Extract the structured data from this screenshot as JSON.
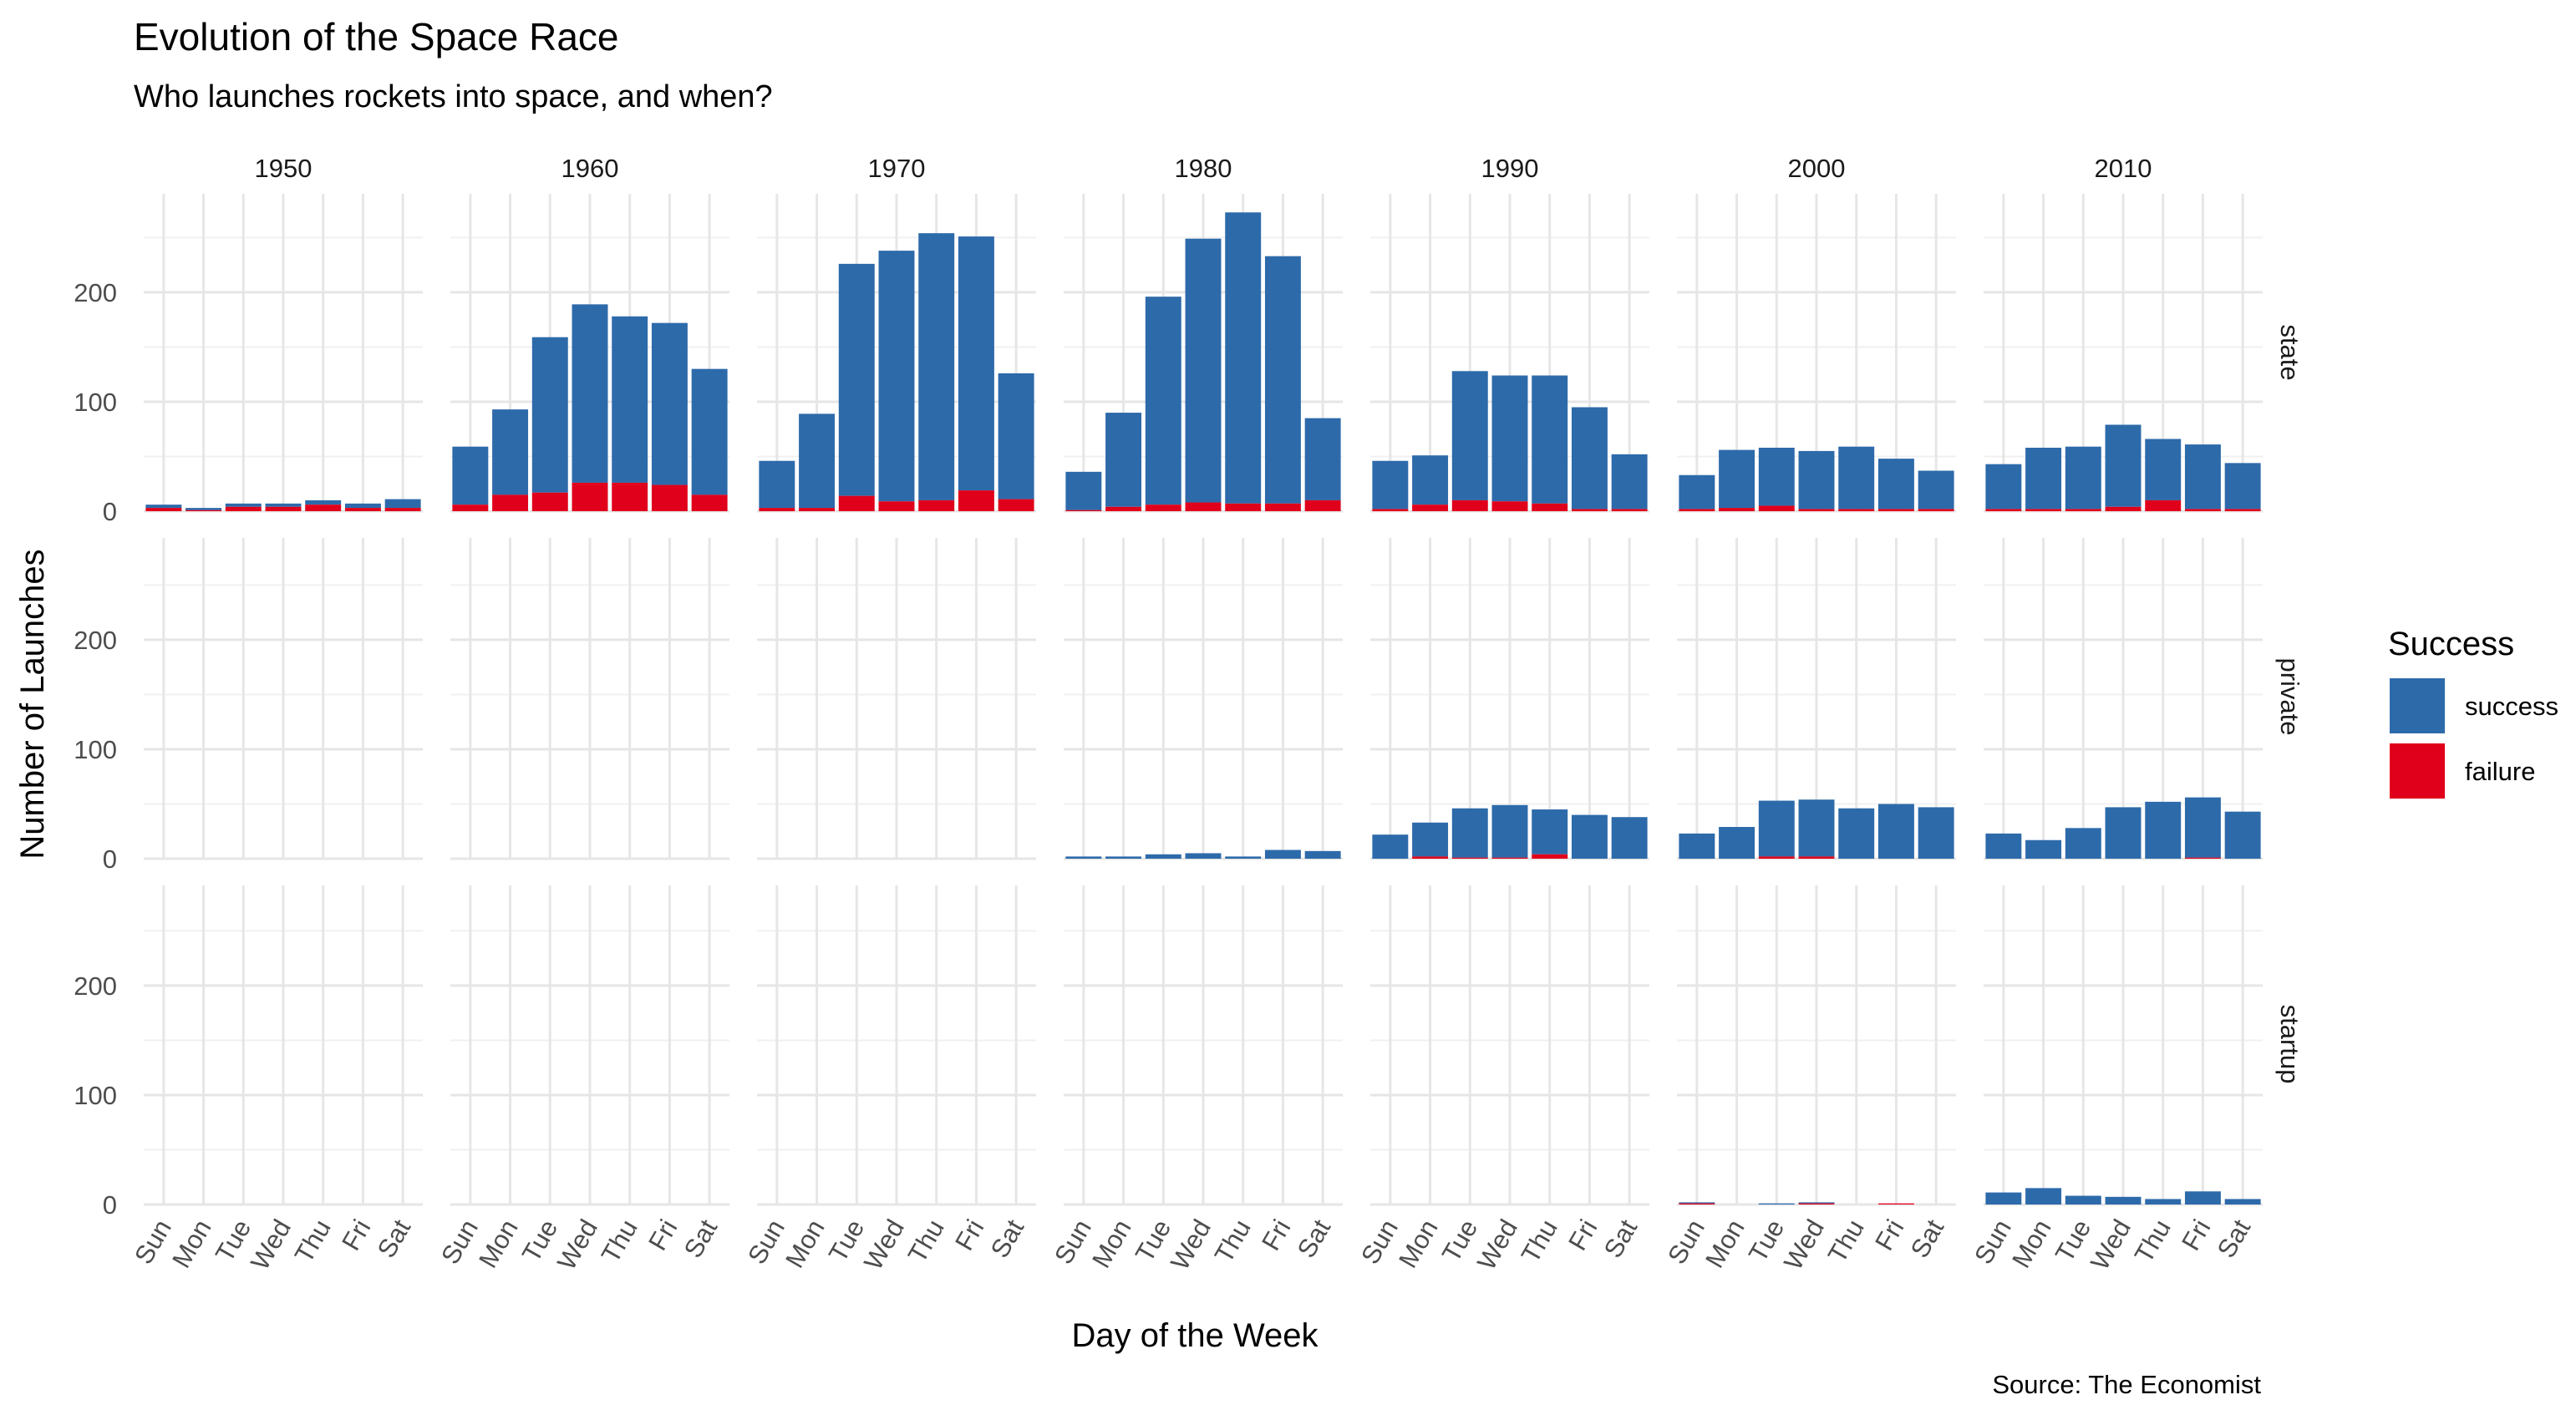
{
  "chart_data": {
    "type": "bar",
    "stacked": true,
    "faceted": true,
    "title": "Evolution of the Space Race",
    "subtitle": "Who launches rockets into space, and when?",
    "xlabel": "Day of the Week",
    "ylabel": "Number of Launches",
    "caption": "Source: The Economist",
    "legend": {
      "title": "Success",
      "placement": "right",
      "entries": [
        {
          "label": "success",
          "color": "#2D6AAA"
        },
        {
          "label": "failure",
          "color": "#E0001B"
        }
      ]
    },
    "grid": true,
    "ylim": [
      0,
      290
    ],
    "yticks": [
      0,
      100,
      200
    ],
    "categories": [
      "Sun",
      "Mon",
      "Tue",
      "Wed",
      "Thu",
      "Fri",
      "Sat"
    ],
    "decades": [
      "1950",
      "1960",
      "1970",
      "1980",
      "1990",
      "2000",
      "2010"
    ],
    "agencies": [
      "state",
      "private",
      "startup"
    ],
    "panels": [
      {
        "agency": "state",
        "decade": "1950",
        "success": [
          3,
          2,
          3,
          3,
          4,
          4,
          8
        ],
        "failure": [
          3,
          1,
          4,
          4,
          6,
          3,
          3
        ]
      },
      {
        "agency": "state",
        "decade": "1960",
        "success": [
          53,
          78,
          142,
          163,
          152,
          148,
          115
        ],
        "failure": [
          6,
          15,
          17,
          26,
          26,
          24,
          15
        ]
      },
      {
        "agency": "state",
        "decade": "1970",
        "success": [
          43,
          86,
          212,
          229,
          244,
          232,
          115
        ],
        "failure": [
          3,
          3,
          14,
          9,
          10,
          19,
          11
        ]
      },
      {
        "agency": "state",
        "decade": "1980",
        "success": [
          35,
          86,
          190,
          241,
          266,
          226,
          75
        ],
        "failure": [
          1,
          4,
          6,
          8,
          7,
          7,
          10
        ]
      },
      {
        "agency": "state",
        "decade": "1990",
        "success": [
          44,
          45,
          118,
          115,
          117,
          93,
          50
        ],
        "failure": [
          2,
          6,
          10,
          9,
          7,
          2,
          2
        ]
      },
      {
        "agency": "state",
        "decade": "2000",
        "success": [
          31,
          53,
          53,
          53,
          57,
          46,
          35
        ],
        "failure": [
          2,
          3,
          5,
          2,
          2,
          2,
          2
        ]
      },
      {
        "agency": "state",
        "decade": "2010",
        "success": [
          41,
          56,
          57,
          75,
          56,
          59,
          42
        ],
        "failure": [
          2,
          2,
          2,
          4,
          10,
          2,
          2
        ]
      },
      {
        "agency": "private",
        "decade": "1950",
        "success": [
          0,
          0,
          0,
          0,
          0,
          0,
          0
        ],
        "failure": [
          0,
          0,
          0,
          0,
          0,
          0,
          0
        ]
      },
      {
        "agency": "private",
        "decade": "1960",
        "success": [
          0,
          0,
          0,
          0,
          0,
          0,
          0
        ],
        "failure": [
          0,
          0,
          0,
          0,
          0,
          0,
          0
        ]
      },
      {
        "agency": "private",
        "decade": "1970",
        "success": [
          0,
          0,
          0,
          0,
          0,
          0,
          0
        ],
        "failure": [
          0,
          0,
          0,
          0,
          0,
          0,
          0
        ]
      },
      {
        "agency": "private",
        "decade": "1980",
        "success": [
          2,
          2,
          4,
          5,
          2,
          8,
          7
        ],
        "failure": [
          0,
          0,
          0,
          0,
          0,
          0,
          0
        ]
      },
      {
        "agency": "private",
        "decade": "1990",
        "success": [
          22,
          31,
          45,
          48,
          41,
          40,
          38
        ],
        "failure": [
          0,
          2,
          1,
          1,
          4,
          0,
          0
        ]
      },
      {
        "agency": "private",
        "decade": "2000",
        "success": [
          23,
          29,
          51,
          52,
          46,
          50,
          47
        ],
        "failure": [
          0,
          0,
          2,
          2,
          0,
          0,
          0
        ]
      },
      {
        "agency": "private",
        "decade": "2010",
        "success": [
          23,
          17,
          28,
          47,
          52,
          55,
          43
        ],
        "failure": [
          0,
          0,
          0,
          0,
          0,
          1,
          0
        ]
      },
      {
        "agency": "startup",
        "decade": "1950",
        "success": [
          0,
          0,
          0,
          0,
          0,
          0,
          0
        ],
        "failure": [
          0,
          0,
          0,
          0,
          0,
          0,
          0
        ]
      },
      {
        "agency": "startup",
        "decade": "1960",
        "success": [
          0,
          0,
          0,
          0,
          0,
          0,
          0
        ],
        "failure": [
          0,
          0,
          0,
          0,
          0,
          0,
          0
        ]
      },
      {
        "agency": "startup",
        "decade": "1970",
        "success": [
          0,
          0,
          0,
          0,
          0,
          0,
          0
        ],
        "failure": [
          0,
          0,
          0,
          0,
          0,
          0,
          0
        ]
      },
      {
        "agency": "startup",
        "decade": "1980",
        "success": [
          0,
          0,
          0,
          0,
          0,
          0,
          0
        ],
        "failure": [
          0,
          0,
          0,
          0,
          0,
          0,
          0
        ]
      },
      {
        "agency": "startup",
        "decade": "1990",
        "success": [
          0,
          0,
          0,
          0,
          0,
          0,
          0
        ],
        "failure": [
          0,
          0,
          0,
          0,
          0,
          0,
          0
        ]
      },
      {
        "agency": "startup",
        "decade": "2000",
        "success": [
          1,
          0,
          1,
          1,
          0,
          0,
          0
        ],
        "failure": [
          1,
          0,
          0,
          1,
          0,
          1,
          0
        ]
      },
      {
        "agency": "startup",
        "decade": "2010",
        "success": [
          11,
          15,
          8,
          7,
          5,
          12,
          5
        ],
        "failure": [
          0,
          0,
          0,
          0,
          0,
          0,
          0
        ]
      }
    ]
  }
}
